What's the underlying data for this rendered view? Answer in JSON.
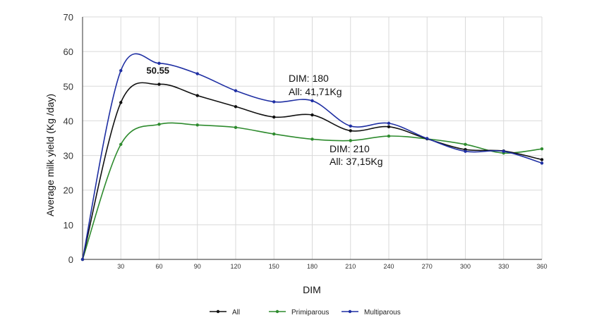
{
  "chart_data": {
    "type": "line",
    "xlabel": "DIM",
    "ylabel": "Average milk yield (Kg /day)",
    "xlim": [
      0,
      360
    ],
    "ylim": [
      0,
      70
    ],
    "x_ticks": [
      30,
      60,
      90,
      120,
      150,
      180,
      210,
      240,
      270,
      300,
      330,
      360
    ],
    "y_ticks": [
      0,
      10,
      20,
      30,
      40,
      50,
      60,
      70
    ],
    "grid": true,
    "legend_position": "bottom",
    "x": [
      0,
      30,
      60,
      90,
      120,
      150,
      180,
      210,
      240,
      270,
      300,
      330,
      360
    ],
    "series": [
      {
        "name": "All",
        "color": "#111111",
        "values": [
          0,
          45.3,
          50.55,
          47.3,
          44.1,
          41.1,
          41.71,
          37.15,
          38.3,
          34.8,
          31.7,
          31.3,
          28.8
        ]
      },
      {
        "name": "Primiparous",
        "color": "#2e8b2e",
        "values": [
          0,
          33.2,
          39.0,
          38.8,
          38.1,
          36.2,
          34.7,
          34.3,
          35.6,
          34.8,
          33.2,
          30.7,
          31.9
        ]
      },
      {
        "name": "Multiparous",
        "color": "#1f2fa3",
        "values": [
          0,
          54.5,
          56.6,
          53.6,
          48.7,
          45.5,
          45.8,
          38.5,
          39.3,
          34.9,
          31.2,
          31.2,
          27.8
        ]
      }
    ],
    "annotations": [
      {
        "text": "50.55",
        "x": 60,
        "y": 50.55,
        "bold": true
      },
      {
        "lines": [
          "DIM: 180",
          "All: 41,71Kg"
        ],
        "x": 180,
        "y": 41.71
      },
      {
        "lines": [
          "DIM: 210",
          "All: 37,15Kg"
        ],
        "x": 210,
        "y": 37.15
      }
    ]
  }
}
